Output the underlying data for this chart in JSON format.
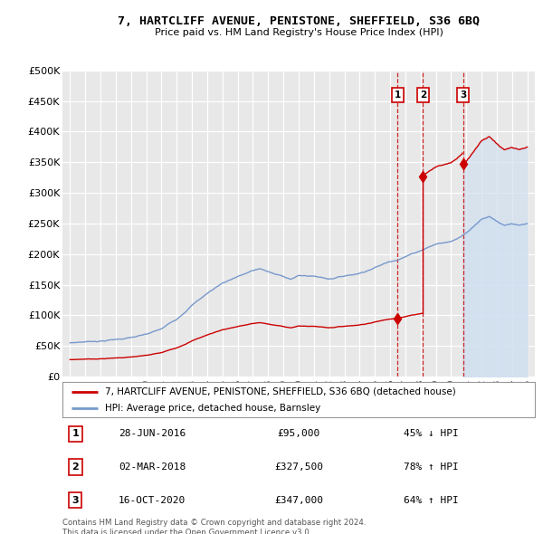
{
  "title": "7, HARTCLIFF AVENUE, PENISTONE, SHEFFIELD, S36 6BQ",
  "subtitle": "Price paid vs. HM Land Registry's House Price Index (HPI)",
  "ylabel_ticks": [
    "£0",
    "£50K",
    "£100K",
    "£150K",
    "£200K",
    "£250K",
    "£300K",
    "£350K",
    "£400K",
    "£450K",
    "£500K"
  ],
  "ytick_values": [
    0,
    50000,
    100000,
    150000,
    200000,
    250000,
    300000,
    350000,
    400000,
    450000,
    500000
  ],
  "ylim": [
    0,
    500000
  ],
  "xlim_start": 1994.5,
  "xlim_end": 2025.5,
  "hpi_color": "#7799cc",
  "price_color": "#cc0000",
  "shade_color": "#d0e0f0",
  "transactions": [
    {
      "num": 1,
      "date": "28-JUN-2016",
      "price": 95000,
      "year": 2016.49,
      "pct": "45%",
      "dir": "↓"
    },
    {
      "num": 2,
      "date": "02-MAR-2018",
      "price": 327500,
      "year": 2018.16,
      "pct": "78%",
      "dir": "↑"
    },
    {
      "num": 3,
      "date": "16-OCT-2020",
      "price": 347000,
      "year": 2020.79,
      "pct": "64%",
      "dir": "↑"
    }
  ],
  "legend_label_price": "7, HARTCLIFF AVENUE, PENISTONE, SHEFFIELD, S36 6BQ (detached house)",
  "legend_label_hpi": "HPI: Average price, detached house, Barnsley",
  "footer_line1": "Contains HM Land Registry data © Crown copyright and database right 2024.",
  "footer_line2": "This data is licensed under the Open Government Licence v3.0.",
  "table_rows": [
    {
      "num": 1,
      "date": "28-JUN-2016",
      "price": "£95,000",
      "pct": "45% ↓ HPI"
    },
    {
      "num": 2,
      "date": "02-MAR-2018",
      "price": "£327,500",
      "pct": "78% ↑ HPI"
    },
    {
      "num": 3,
      "date": "16-OCT-2020",
      "price": "£347,000",
      "pct": "64% ↑ HPI"
    }
  ],
  "background_color": "#ffffff",
  "plot_bg_color": "#e8e8e8",
  "grid_color": "#ffffff"
}
